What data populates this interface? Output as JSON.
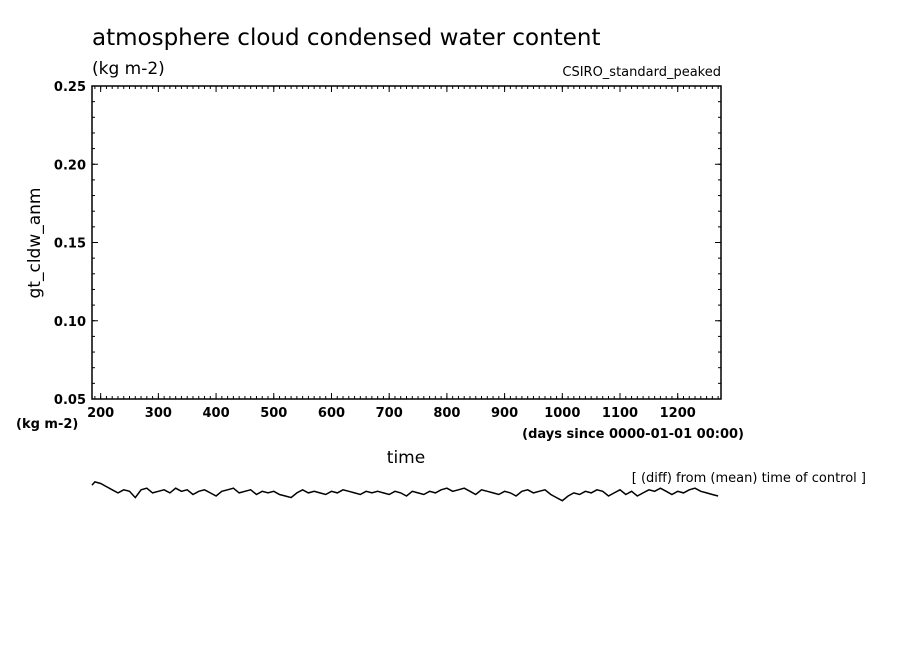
{
  "chart_data": {
    "type": "line",
    "title": "atmosphere cloud condensed water content",
    "units": "(kg m-2)",
    "model": "CSIRO_standard_peaked",
    "ylabel": "gt_cldw_anm",
    "y_units": "(kg m-2)",
    "xlabel": "time",
    "x_units": "(days since 0000-01-01 00:00)",
    "note": "[ (diff) from (mean) time of control ]",
    "xlim": [
      185,
      1275
    ],
    "ylim": [
      0.05,
      0.25
    ],
    "x_ticks": [
      "200",
      "300",
      "400",
      "500",
      "600",
      "700",
      "800",
      "900",
      "1000",
      "1100",
      "1200"
    ],
    "y_ticks": [
      "0.05",
      "0.10",
      "0.15",
      "0.20",
      "0.25"
    ],
    "grid": false,
    "series": [
      {
        "x": [
          185,
          190,
          200,
          210,
          220,
          230,
          240,
          250,
          260,
          270,
          280,
          290,
          300,
          310,
          320,
          330,
          340,
          350,
          360,
          370,
          380,
          390,
          400,
          410,
          420,
          430,
          440,
          450,
          460,
          470,
          480,
          490,
          500,
          510,
          520,
          530,
          540,
          550,
          560,
          570,
          580,
          590,
          600,
          610,
          620,
          630,
          640,
          650,
          660,
          670,
          680,
          690,
          700,
          710,
          720,
          730,
          740,
          750,
          760,
          770,
          780,
          790,
          800,
          810,
          820,
          830,
          840,
          850,
          860,
          870,
          880,
          890,
          900,
          910,
          920,
          930,
          940,
          950,
          960,
          970,
          980,
          990,
          1000,
          1010,
          1020,
          1030,
          1040,
          1050,
          1060,
          1070,
          1080,
          1090,
          1100,
          1110,
          1120,
          1130,
          1140,
          1150,
          1160,
          1170,
          1180,
          1190,
          1200,
          1210,
          1220,
          1230,
          1240,
          1250,
          1260,
          1270
        ],
        "y": [
          -0.005,
          -0.003,
          -0.004,
          -0.006,
          -0.008,
          -0.01,
          -0.008,
          -0.009,
          -0.013,
          -0.008,
          -0.007,
          -0.01,
          -0.009,
          -0.008,
          -0.01,
          -0.007,
          -0.009,
          -0.008,
          -0.011,
          -0.009,
          -0.008,
          -0.01,
          -0.012,
          -0.009,
          -0.008,
          -0.007,
          -0.01,
          -0.009,
          -0.008,
          -0.011,
          -0.009,
          -0.01,
          -0.009,
          -0.011,
          -0.012,
          -0.013,
          -0.01,
          -0.008,
          -0.01,
          -0.009,
          -0.01,
          -0.011,
          -0.009,
          -0.01,
          -0.008,
          -0.009,
          -0.01,
          -0.011,
          -0.009,
          -0.01,
          -0.009,
          -0.01,
          -0.011,
          -0.009,
          -0.01,
          -0.012,
          -0.009,
          -0.01,
          -0.011,
          -0.009,
          -0.01,
          -0.008,
          -0.007,
          -0.009,
          -0.008,
          -0.007,
          -0.009,
          -0.011,
          -0.008,
          -0.009,
          -0.01,
          -0.011,
          -0.009,
          -0.01,
          -0.012,
          -0.009,
          -0.008,
          -0.01,
          -0.009,
          -0.008,
          -0.011,
          -0.013,
          -0.015,
          -0.012,
          -0.01,
          -0.011,
          -0.009,
          -0.01,
          -0.008,
          -0.009,
          -0.012,
          -0.01,
          -0.008,
          -0.011,
          -0.009,
          -0.012,
          -0.01,
          -0.008,
          -0.009,
          -0.007,
          -0.009,
          -0.011,
          -0.009,
          -0.01,
          -0.008,
          -0.007,
          -0.009,
          -0.01,
          -0.011,
          -0.012
        ]
      }
    ]
  }
}
